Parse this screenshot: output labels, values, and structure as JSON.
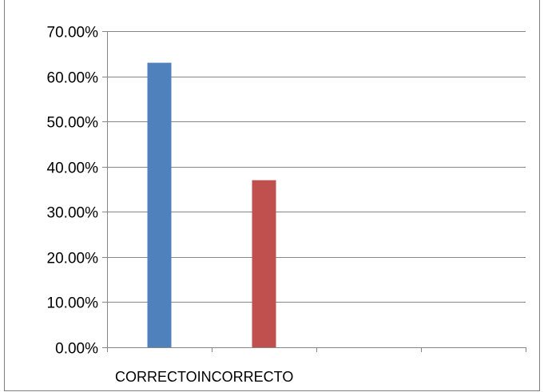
{
  "chart_data": {
    "type": "bar",
    "categories": [
      "CORRECTO",
      "INCORRECTO"
    ],
    "values": [
      0.63,
      0.37
    ],
    "colors": [
      "#4F81BD",
      "#C0504D"
    ],
    "ylim": [
      0,
      0.7
    ],
    "yticks": [
      0,
      0.1,
      0.2,
      0.3,
      0.4,
      0.5,
      0.6,
      0.7
    ],
    "ytick_labels": [
      "0.00%",
      "10.00%",
      "20.00%",
      "30.00%",
      "40.00%",
      "50.00%",
      "60.00%",
      "70.00%"
    ],
    "category_label_text": "CORRECTOINCORRECTO",
    "grid": true,
    "legend": "none"
  }
}
